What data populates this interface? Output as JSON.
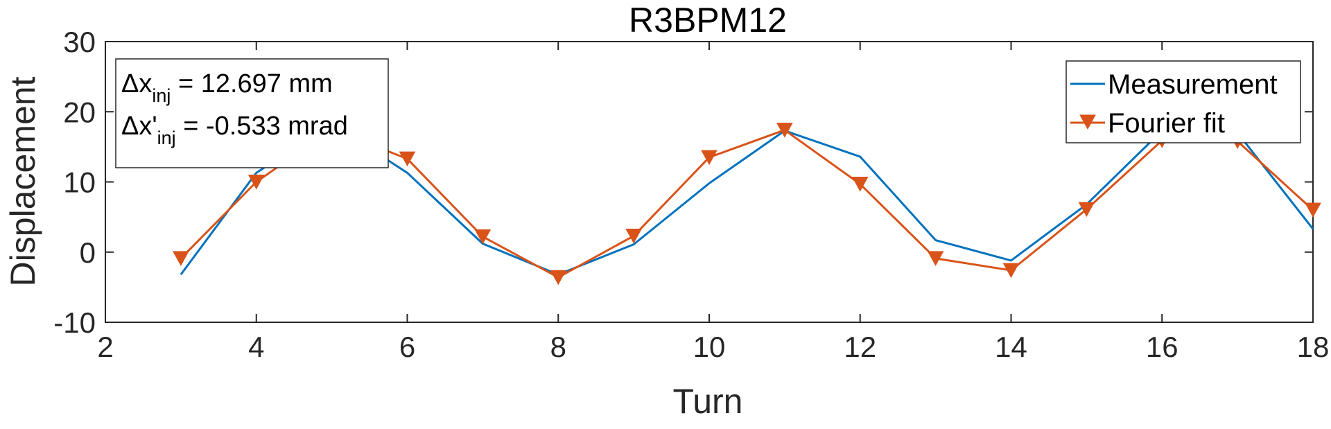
{
  "chart_data": {
    "type": "line",
    "title": "R3BPM12",
    "xlabel": "Turn",
    "ylabel": "Displacement",
    "xlim": [
      2,
      18
    ],
    "ylim": [
      -10,
      30
    ],
    "xticks": [
      2,
      4,
      6,
      8,
      10,
      12,
      14,
      16,
      18
    ],
    "yticks": [
      -10,
      0,
      10,
      20,
      30
    ],
    "grid": false,
    "legend_position": "top-right",
    "series": [
      {
        "name": "Measurement",
        "color": "#0072BD",
        "marker": "none",
        "x": [
          3,
          4,
          5,
          6,
          7,
          8,
          9,
          10,
          11,
          12,
          13,
          14,
          15,
          16,
          17,
          18
        ],
        "y": [
          -3.2,
          11.3,
          18.3,
          11.3,
          1.2,
          -3.2,
          1.1,
          9.8,
          17.3,
          13.6,
          1.7,
          -1.2,
          6.8,
          17.3,
          17.0,
          3.3
        ]
      },
      {
        "name": "Fourier fit",
        "color": "#D95319",
        "marker": "triangle-down",
        "x": [
          3,
          4,
          5,
          6,
          7,
          8,
          9,
          10,
          11,
          12,
          13,
          14,
          15,
          16,
          17,
          18
        ],
        "y": [
          -0.9,
          10.0,
          17.5,
          13.3,
          2.2,
          -3.6,
          2.3,
          13.5,
          17.4,
          9.7,
          -0.9,
          -2.6,
          6.1,
          15.9,
          15.8,
          6.0
        ]
      }
    ],
    "annotation": {
      "line1": {
        "prefix": "Δx",
        "sub": "inj",
        "text": " = 12.697 mm"
      },
      "line2": {
        "prefix": "Δx'",
        "sub": "inj",
        "text": " =  -0.533 mrad"
      }
    }
  }
}
